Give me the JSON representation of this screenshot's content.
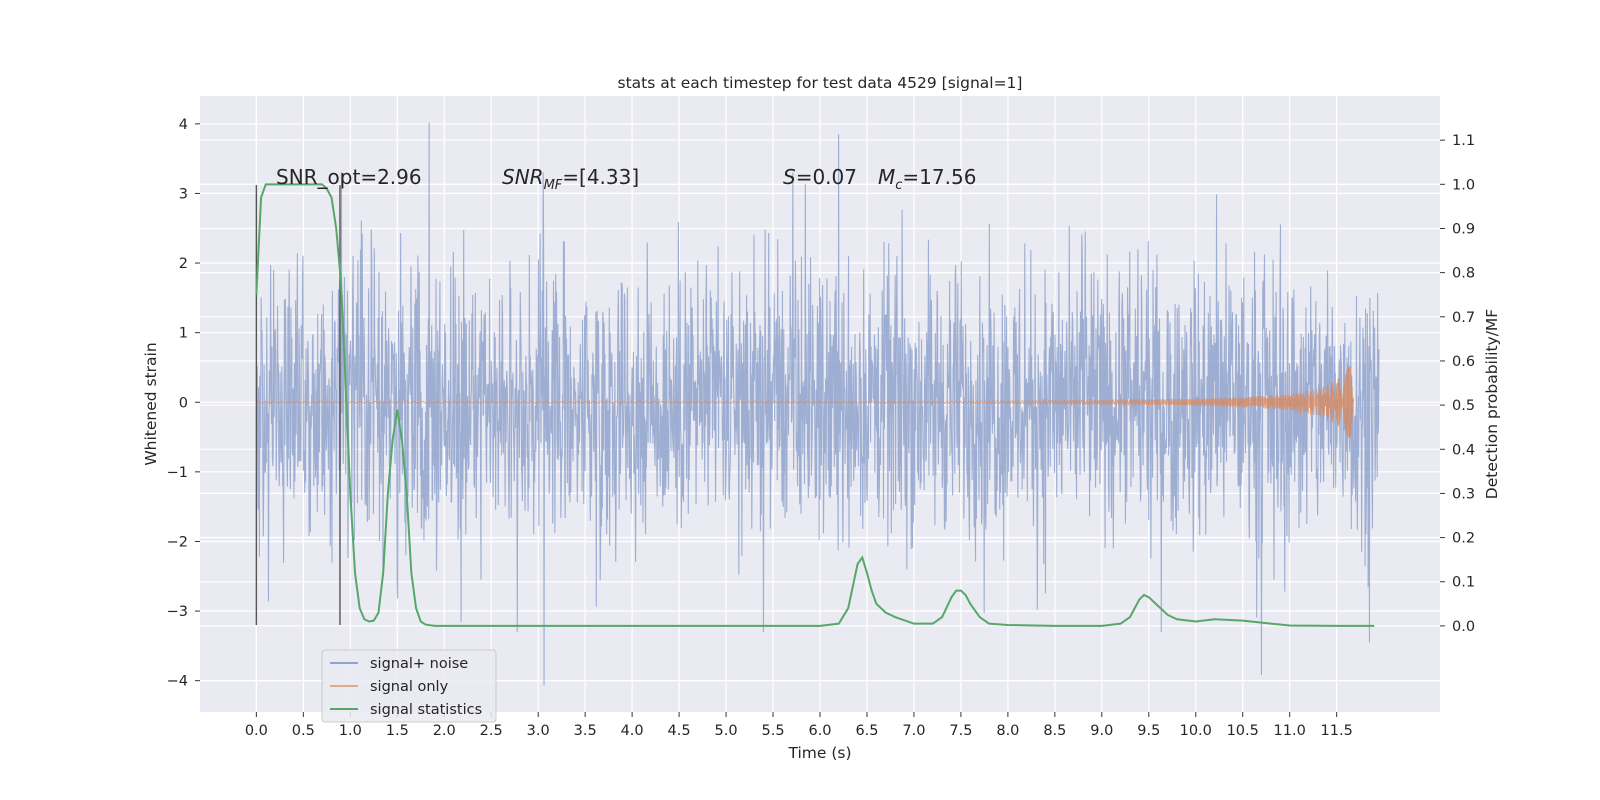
{
  "chart_data": {
    "type": "line",
    "title": "stats at each timestep for test data 4529 [signal=1]",
    "xlabel": "Time (s)",
    "ylabel": "Whitened strain",
    "y2label": "Detection probability/MF",
    "xlim": [
      -0.6,
      12.6
    ],
    "ylim": [
      -4.45,
      4.4
    ],
    "y2lim": [
      -0.195,
      1.2
    ],
    "x_ticks": [
      "0.0",
      "0.5",
      "1.0",
      "1.5",
      "2.0",
      "2.5",
      "3.0",
      "3.5",
      "4.0",
      "4.5",
      "5.0",
      "5.5",
      "6.0",
      "6.5",
      "7.0",
      "7.5",
      "8.0",
      "8.5",
      "9.0",
      "9.5",
      "10.0",
      "10.5",
      "11.0",
      "11.5"
    ],
    "y_ticks": [
      "4",
      "3",
      "2",
      "1",
      "0",
      "−1",
      "−2",
      "−3",
      "−4"
    ],
    "y2_ticks": [
      "1.1",
      "1.0",
      "0.9",
      "0.8",
      "0.7",
      "0.6",
      "0.5",
      "0.4",
      "0.3",
      "0.2",
      "0.1",
      "0.0"
    ],
    "grid": true,
    "legend_position": "lower-left",
    "annotations": {
      "snr_opt": "SNR_opt=2.96",
      "snr_mf_main": "SNR",
      "snr_mf_sub": "MF",
      "snr_mf_value": "=[4.33]",
      "s_symbol": "S",
      "s_value": "=0.07",
      "mc_symbol": "M",
      "mc_sub": "c",
      "mc_value": "=17.56"
    },
    "vertical_lines": [
      0.0,
      0.89
    ],
    "series": [
      {
        "name": "signal+ noise",
        "color": "#8fa3cc",
        "axis": "left",
        "kind": "noise",
        "x_range": [
          0.0,
          11.95
        ],
        "envelope": [
          1.2,
          -1.3
        ],
        "notable_peaks": [
          [
            1.84,
            4.02
          ],
          [
            6.2,
            3.85
          ],
          [
            3.06,
            -4.07
          ],
          [
            10.7,
            -3.92
          ],
          [
            11.85,
            -3.45
          ]
        ]
      },
      {
        "name": "signal only",
        "color": "#dd8452",
        "axis": "left",
        "kind": "chirp",
        "x": [
          0.0,
          7.0,
          9.0,
          10.0,
          10.6,
          11.0,
          11.3,
          11.5,
          11.6,
          11.65,
          11.68
        ],
        "amp": [
          0.01,
          0.01,
          0.03,
          0.05,
          0.08,
          0.12,
          0.2,
          0.32,
          0.45,
          0.57,
          0.0
        ]
      },
      {
        "name": "signal statistics",
        "color": "#55a868",
        "axis": "right",
        "x": [
          0.0,
          0.05,
          0.1,
          0.15,
          0.2,
          0.25,
          0.3,
          0.4,
          0.5,
          0.6,
          0.7,
          0.75,
          0.8,
          0.85,
          0.9,
          0.95,
          1.0,
          1.05,
          1.1,
          1.15,
          1.2,
          1.25,
          1.3,
          1.35,
          1.4,
          1.45,
          1.5,
          1.55,
          1.6,
          1.65,
          1.7,
          1.75,
          1.8,
          1.9,
          2.0,
          3.0,
          4.0,
          5.0,
          6.0,
          6.2,
          6.3,
          6.35,
          6.4,
          6.45,
          6.5,
          6.55,
          6.6,
          6.7,
          6.8,
          7.0,
          7.2,
          7.3,
          7.4,
          7.45,
          7.5,
          7.55,
          7.6,
          7.7,
          7.8,
          8.0,
          8.5,
          9.0,
          9.2,
          9.3,
          9.35,
          9.4,
          9.45,
          9.5,
          9.6,
          9.7,
          9.8,
          10.0,
          10.2,
          10.5,
          10.8,
          11.0,
          11.5,
          11.9
        ],
        "values": [
          0.75,
          0.97,
          1.0,
          1.0,
          1.0,
          1.0,
          1.0,
          1.0,
          1.0,
          1.0,
          1.0,
          0.99,
          0.97,
          0.9,
          0.78,
          0.55,
          0.3,
          0.12,
          0.04,
          0.015,
          0.01,
          0.012,
          0.03,
          0.12,
          0.3,
          0.42,
          0.49,
          0.42,
          0.3,
          0.12,
          0.04,
          0.01,
          0.003,
          0.0,
          0.0,
          0.0,
          0.0,
          0.0,
          0.0,
          0.005,
          0.04,
          0.09,
          0.14,
          0.155,
          0.12,
          0.08,
          0.05,
          0.03,
          0.02,
          0.005,
          0.005,
          0.02,
          0.065,
          0.08,
          0.08,
          0.07,
          0.05,
          0.02,
          0.005,
          0.002,
          0.0,
          0.0,
          0.005,
          0.02,
          0.04,
          0.06,
          0.07,
          0.065,
          0.045,
          0.025,
          0.015,
          0.01,
          0.015,
          0.012,
          0.005,
          0.001,
          0.0,
          0.0
        ]
      }
    ]
  }
}
